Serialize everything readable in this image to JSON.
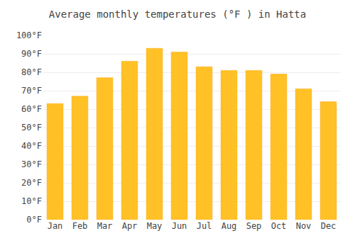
{
  "chart_data": {
    "type": "bar",
    "title": "Average monthly temperatures (°F ) in Hatta",
    "categories": [
      "Jan",
      "Feb",
      "Mar",
      "Apr",
      "May",
      "Jun",
      "Jul",
      "Aug",
      "Sep",
      "Oct",
      "Nov",
      "Dec"
    ],
    "values": [
      63,
      67,
      77,
      86,
      93,
      91,
      83,
      81,
      81,
      79,
      71,
      64
    ],
    "color": "#FFC125",
    "ylim": [
      0,
      100
    ],
    "yticks": [
      {
        "value": 0,
        "label": "0°F"
      },
      {
        "value": 10,
        "label": "10°F"
      },
      {
        "value": 20,
        "label": "20°F"
      },
      {
        "value": 30,
        "label": "30°F"
      },
      {
        "value": 40,
        "label": "40°F"
      },
      {
        "value": 50,
        "label": "50°F"
      },
      {
        "value": 60,
        "label": "60°F"
      },
      {
        "value": 70,
        "label": "70°F"
      },
      {
        "value": 80,
        "label": "80°F"
      },
      {
        "value": 90,
        "label": "90°F"
      },
      {
        "value": 100,
        "label": "100°F"
      }
    ],
    "grid": true
  }
}
